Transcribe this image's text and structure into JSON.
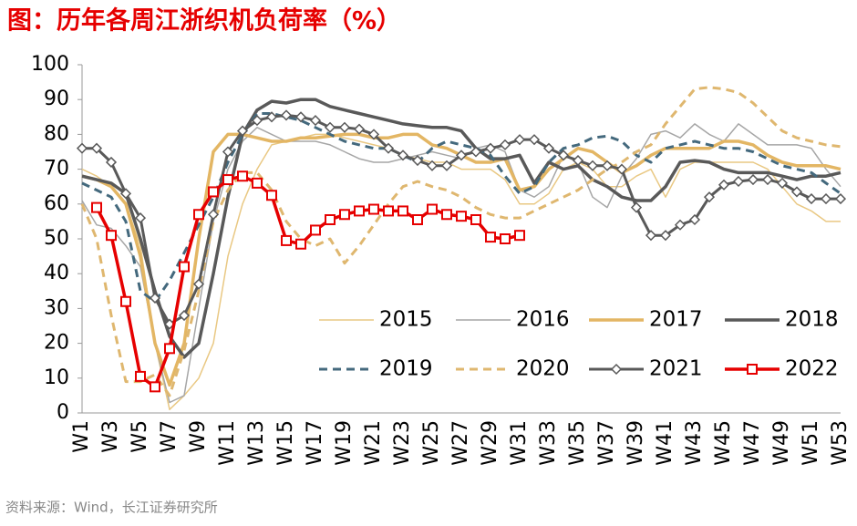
{
  "chart_data": {
    "type": "line",
    "title": "图：历年各周江浙织机负荷率（%）",
    "source": "资料来源：Wind，长江证券研究所",
    "categories": [
      "W1",
      null,
      "W3",
      null,
      "W5",
      null,
      "W7",
      null,
      "W9",
      null,
      "W11",
      null,
      "W13",
      null,
      "W15",
      null,
      "W17",
      null,
      "W19",
      null,
      "W21",
      null,
      "W23",
      null,
      "W25",
      null,
      "W27",
      null,
      "W29",
      null,
      "W31",
      null,
      "W33",
      null,
      "W35",
      null,
      "W37",
      null,
      "W39",
      null,
      "W41",
      null,
      "W43",
      null,
      "W45",
      null,
      "W47",
      null,
      "W49",
      null,
      "W51",
      null,
      "W53"
    ],
    "ylim": [
      0,
      100
    ],
    "yticks": [
      0,
      10,
      20,
      30,
      40,
      50,
      60,
      70,
      80,
      90,
      100
    ],
    "grid": false,
    "series": [
      {
        "name": "2015",
        "color": "#e9c883",
        "width": 1.5,
        "dash": false,
        "marker": null,
        "values": [
          70,
          68,
          65,
          60,
          48,
          20,
          1,
          5,
          10,
          20,
          45,
          60,
          70,
          77,
          78,
          79,
          80,
          80,
          79,
          78,
          77,
          76,
          74,
          73,
          72,
          72,
          70,
          70,
          70,
          67,
          60,
          60,
          63,
          70,
          72,
          70,
          65,
          65,
          68,
          70,
          62,
          70,
          72,
          72,
          72,
          72,
          72,
          70,
          65,
          60,
          58,
          55,
          55
        ]
      },
      {
        "name": "2016",
        "color": "#a6a6a6",
        "width": 1.5,
        "dash": false,
        "marker": null,
        "values": [
          61,
          54,
          53,
          48,
          42,
          20,
          3,
          5,
          30,
          55,
          70,
          78,
          82,
          80,
          78,
          78,
          78,
          77,
          75,
          73,
          72,
          72,
          73,
          74,
          75,
          74,
          73,
          76,
          77,
          75,
          64,
          62,
          65,
          74,
          72,
          62,
          59,
          68,
          73,
          80,
          81,
          79,
          83,
          80,
          78,
          83,
          80,
          77,
          77,
          77,
          76,
          70,
          65
        ]
      },
      {
        "name": "2017",
        "color": "#e3b664",
        "width": 3.5,
        "dash": false,
        "marker": null,
        "values": [
          68,
          67,
          65,
          60,
          45,
          20,
          8,
          20,
          50,
          75,
          80,
          80,
          79,
          78,
          78,
          79,
          79,
          79.5,
          80,
          80,
          79,
          79,
          80,
          80,
          77,
          76,
          74,
          72,
          72,
          73,
          64,
          65,
          70,
          73,
          76,
          75,
          72,
          69,
          71,
          74,
          76,
          76,
          76,
          76,
          78,
          78,
          77,
          74,
          72,
          71,
          71,
          71,
          70
        ]
      },
      {
        "name": "2018",
        "color": "#595959",
        "width": 3.5,
        "dash": false,
        "marker": null,
        "values": [
          68,
          67,
          66,
          63,
          50,
          35,
          22,
          16,
          20,
          40,
          62,
          80,
          87,
          89.5,
          89,
          90,
          90,
          88,
          87,
          86,
          85,
          84,
          83,
          82.5,
          82,
          82,
          81,
          76,
          73,
          73,
          74,
          66,
          72,
          70,
          71,
          67,
          65,
          62,
          61,
          61,
          65,
          72,
          72.5,
          72,
          70,
          69,
          69,
          69,
          68,
          67,
          68,
          68,
          69
        ]
      },
      {
        "name": "2019",
        "color": "#44697d",
        "width": 3,
        "dash": true,
        "marker": null,
        "values": [
          66,
          64,
          62,
          55,
          35,
          32,
          38,
          46,
          54,
          62,
          72,
          80,
          86,
          86,
          85,
          84,
          82,
          80,
          78,
          77,
          76,
          76,
          74,
          72,
          76,
          78,
          77,
          76,
          74,
          68,
          63,
          65,
          72,
          76,
          77,
          79,
          79.5,
          78,
          74,
          72,
          76,
          77,
          78,
          77,
          76,
          76,
          75,
          73,
          71,
          70,
          69,
          66,
          63
        ]
      },
      {
        "name": "2020",
        "color": "#dfb76f",
        "width": 3,
        "dash": true,
        "marker": null,
        "values": [
          60,
          50,
          28,
          9,
          9,
          11,
          5,
          18,
          35,
          55,
          64,
          69,
          69,
          64,
          55,
          50,
          48,
          50,
          43,
          48,
          54,
          60,
          65,
          66.5,
          65,
          64,
          62,
          59,
          57,
          56,
          56,
          58,
          60,
          62,
          64,
          67,
          70,
          72,
          75,
          77,
          83,
          88,
          93,
          93.5,
          93,
          92,
          89,
          85,
          81,
          79,
          78,
          77,
          76.5
        ]
      },
      {
        "name": "2021",
        "color": "#595959",
        "width": 3,
        "dash": false,
        "marker": "diamond",
        "values": [
          76,
          76,
          72,
          63,
          56,
          33,
          25.5,
          28,
          37,
          57,
          75,
          81,
          84,
          85,
          85.5,
          85,
          84,
          82,
          82,
          81.5,
          80,
          76,
          74,
          72.5,
          71,
          71,
          74,
          75,
          76,
          77,
          78.5,
          78.5,
          76,
          74,
          72.5,
          71,
          71,
          70,
          59,
          51,
          51,
          54,
          55.5,
          62,
          65.5,
          66.5,
          67,
          67,
          66,
          63.5,
          61.5,
          61.5,
          61.5
        ]
      },
      {
        "name": "2022",
        "color": "#e60000",
        "width": 3.5,
        "dash": false,
        "marker": "square",
        "values": [
          null,
          59,
          51,
          32,
          10.5,
          7.5,
          18.5,
          42,
          57,
          63.5,
          67,
          68,
          66,
          62.5,
          49.5,
          48.5,
          52.5,
          55.5,
          57,
          58,
          58.5,
          58,
          58,
          55.5,
          58.5,
          57,
          56.5,
          55.5,
          50.5,
          50,
          51,
          null,
          null,
          null,
          null,
          null,
          null,
          null,
          null,
          null,
          null,
          null,
          null,
          null,
          null,
          null,
          null,
          null,
          null,
          null,
          null,
          null,
          null
        ]
      }
    ]
  }
}
